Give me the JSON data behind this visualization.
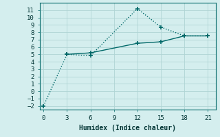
{
  "xlabel": "Humidex (Indice chaleur)",
  "bg_color": "#d4eeee",
  "grid_color": "#b0d4d4",
  "line_color": "#006868",
  "line1_x": [
    0,
    3,
    6,
    12,
    15,
    18,
    21
  ],
  "line1_y": [
    -2,
    5.0,
    4.8,
    11.2,
    8.7,
    7.5,
    7.5
  ],
  "line2_x": [
    3,
    6,
    12,
    15,
    18,
    21
  ],
  "line2_y": [
    5.0,
    5.2,
    6.5,
    6.7,
    7.5,
    7.5
  ],
  "xlim": [
    -0.5,
    22
  ],
  "ylim": [
    -2.5,
    12
  ],
  "xticks": [
    0,
    3,
    6,
    9,
    12,
    15,
    18,
    21
  ],
  "yticks": [
    -2,
    -1,
    0,
    1,
    2,
    3,
    4,
    5,
    6,
    7,
    8,
    9,
    10,
    11
  ],
  "marker": "+",
  "marker_size": 4,
  "xlabel_fontsize": 7,
  "tick_fontsize": 6.5
}
